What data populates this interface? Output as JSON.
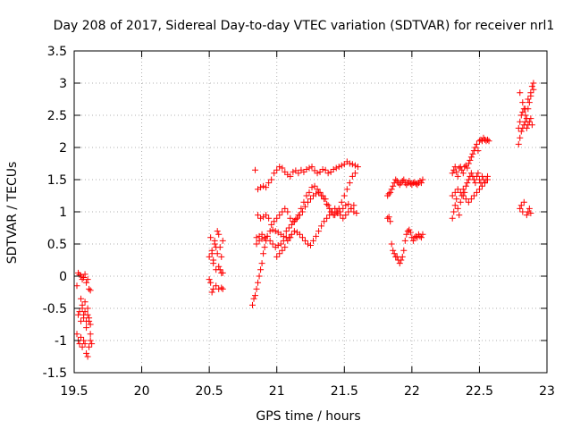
{
  "chart_data": {
    "type": "scatter",
    "title": "Day 208 of 2017, Sidereal Day-to-day VTEC variation (SDTVAR) for receiver nrl1",
    "xlabel": "GPS time / hours",
    "ylabel": "SDTVAR / TECUs",
    "xlim": [
      19.5,
      23
    ],
    "ylim": [
      -1.5,
      3.5
    ],
    "xticks": [
      19.5,
      20,
      20.5,
      21,
      21.5,
      22,
      22.5,
      23
    ],
    "yticks": [
      -1.5,
      -1,
      -0.5,
      0,
      0.5,
      1,
      1.5,
      2,
      2.5,
      3,
      3.5
    ],
    "grid": true,
    "marker": "+",
    "series": [
      {
        "name": "SDTVAR",
        "color": "#ff0000",
        "x": [
          19.52,
          19.53,
          19.54,
          19.55,
          19.56,
          19.57,
          19.58,
          19.59,
          19.6,
          19.61,
          19.62,
          19.53,
          19.54,
          19.55,
          19.56,
          19.57,
          19.58,
          19.59,
          19.6,
          19.61,
          19.62,
          19.52,
          19.53,
          19.54,
          19.55,
          19.56,
          19.57,
          19.58,
          19.59,
          19.6,
          19.61,
          19.62,
          19.55,
          19.56,
          19.57,
          19.58,
          19.59,
          19.6,
          19.61,
          19.62,
          19.63,
          20.5,
          20.51,
          20.52,
          20.53,
          20.54,
          20.55,
          20.56,
          20.57,
          20.58,
          20.59,
          20.6,
          20.52,
          20.53,
          20.54,
          20.55,
          20.56,
          20.57,
          20.58,
          20.59,
          20.6,
          20.5,
          20.51,
          20.52,
          20.53,
          20.55,
          20.57,
          20.59,
          20.6,
          20.82,
          20.83,
          20.84,
          20.85,
          20.86,
          20.87,
          20.88,
          20.89,
          20.9,
          20.91,
          20.92,
          20.84,
          20.86,
          20.88,
          20.9,
          20.92,
          20.94,
          20.96,
          20.98,
          21.0,
          21.02,
          21.04,
          21.06,
          21.08,
          21.1,
          21.12,
          21.14,
          21.16,
          21.18,
          21.2,
          21.22,
          21.24,
          21.26,
          21.28,
          21.3,
          21.32,
          21.34,
          21.36,
          21.38,
          21.4,
          21.42,
          21.44,
          21.46,
          21.48,
          21.5,
          21.52,
          21.54,
          21.56,
          21.58,
          21.6,
          20.86,
          20.88,
          20.9,
          20.92,
          20.94,
          20.96,
          20.98,
          21.0,
          21.02,
          21.04,
          21.06,
          21.08,
          21.1,
          21.12,
          21.14,
          21.16,
          21.18,
          21.2,
          21.22,
          21.24,
          21.26,
          21.28,
          21.3,
          21.32,
          21.34,
          21.36,
          21.38,
          21.4,
          21.42,
          21.44,
          21.46,
          21.48,
          21.5,
          21.52,
          21.54,
          21.56,
          21.58,
          20.85,
          20.87,
          20.89,
          20.91,
          20.93,
          20.95,
          20.97,
          20.99,
          21.01,
          21.03,
          21.05,
          21.07,
          21.09,
          21.11,
          21.13,
          21.15,
          21.17,
          21.19,
          21.21,
          21.23,
          21.25,
          21.27,
          21.29,
          21.31,
          21.33,
          21.35,
          21.37,
          21.39,
          21.41,
          21.43,
          21.45,
          21.47,
          21.49,
          21.51,
          21.53,
          21.55,
          21.57,
          21.59,
          20.85,
          20.87,
          20.89,
          20.91,
          20.93,
          20.95,
          20.97,
          20.99,
          21.01,
          21.03,
          21.05,
          21.07,
          21.09,
          21.11,
          21.13,
          21.15,
          21.17,
          21.19,
          21.21,
          21.23,
          21.25,
          21.27,
          21.29,
          21.31,
          21.33,
          21.35,
          21.37,
          21.39,
          21.41,
          21.43,
          21.45,
          21.47,
          21.49,
          21.51,
          21.53,
          21.55,
          21.57,
          21.0,
          21.02,
          21.04,
          21.06,
          21.08,
          21.1,
          21.82,
          21.83,
          21.84,
          21.85,
          21.86,
          21.87,
          21.88,
          21.89,
          21.9,
          21.91,
          21.92,
          21.93,
          21.94,
          21.95,
          21.96,
          21.97,
          21.98,
          21.99,
          22.0,
          22.01,
          22.02,
          22.03,
          22.04,
          22.05,
          22.06,
          22.07,
          22.08,
          21.82,
          21.83,
          21.84,
          21.85,
          21.86,
          21.87,
          21.88,
          21.89,
          21.9,
          21.91,
          21.92,
          21.93,
          21.94,
          21.95,
          21.96,
          21.97,
          21.98,
          21.99,
          22.0,
          22.01,
          22.02,
          22.03,
          22.04,
          22.05,
          22.06,
          22.07,
          22.08,
          22.3,
          22.31,
          22.32,
          22.33,
          22.34,
          22.35,
          22.36,
          22.37,
          22.38,
          22.39,
          22.4,
          22.41,
          22.42,
          22.43,
          22.44,
          22.45,
          22.46,
          22.47,
          22.48,
          22.49,
          22.5,
          22.51,
          22.52,
          22.53,
          22.54,
          22.55,
          22.56,
          22.57,
          22.3,
          22.31,
          22.32,
          22.33,
          22.34,
          22.35,
          22.36,
          22.37,
          22.38,
          22.39,
          22.4,
          22.41,
          22.42,
          22.43,
          22.44,
          22.45,
          22.46,
          22.47,
          22.48,
          22.49,
          22.5,
          22.51,
          22.52,
          22.53,
          22.54,
          22.55,
          22.56,
          22.3,
          22.32,
          22.34,
          22.36,
          22.38,
          22.4,
          22.42,
          22.44,
          22.46,
          22.48,
          22.5,
          22.52,
          22.54,
          22.56,
          22.79,
          22.8,
          22.81,
          22.82,
          22.83,
          22.84,
          22.85,
          22.86,
          22.87,
          22.88,
          22.89,
          22.9,
          22.79,
          22.8,
          22.81,
          22.82,
          22.83,
          22.84,
          22.85,
          22.86,
          22.87,
          22.88,
          22.89,
          22.8,
          22.82,
          22.84,
          22.86,
          22.88,
          22.9,
          22.8,
          22.81,
          22.82,
          22.83,
          22.85,
          22.86,
          22.87,
          22.88
        ],
        "y": [
          -0.15,
          0.05,
          0.02,
          0.0,
          -0.05,
          -0.02,
          0.03,
          -0.1,
          -0.05,
          -0.2,
          -0.22,
          -0.6,
          -0.55,
          -0.7,
          -0.5,
          -0.65,
          -0.4,
          -0.8,
          -0.6,
          -0.7,
          -0.75,
          -0.9,
          -1.0,
          -1.05,
          -0.95,
          -1.1,
          -1.0,
          -1.05,
          -1.2,
          -1.25,
          -1.1,
          -1.0,
          -0.35,
          -0.45,
          -0.6,
          -0.55,
          -0.7,
          -0.5,
          -0.65,
          -0.9,
          -1.05,
          0.3,
          0.6,
          0.4,
          0.2,
          0.5,
          0.1,
          0.7,
          0.65,
          0.45,
          0.3,
          0.55,
          0.35,
          0.25,
          0.55,
          0.45,
          0.35,
          0.15,
          0.1,
          0.05,
          0.05,
          -0.05,
          -0.1,
          -0.25,
          -0.2,
          -0.15,
          -0.2,
          -0.18,
          -0.2,
          -0.45,
          -0.35,
          -0.3,
          -0.2,
          -0.1,
          0.0,
          0.1,
          0.2,
          0.35,
          0.45,
          0.55,
          1.65,
          1.35,
          1.38,
          1.4,
          1.38,
          1.45,
          1.5,
          1.6,
          1.65,
          1.7,
          1.68,
          1.62,
          1.58,
          1.55,
          1.62,
          1.64,
          1.6,
          1.65,
          1.62,
          1.66,
          1.68,
          1.7,
          1.64,
          1.6,
          1.62,
          1.66,
          1.65,
          1.6,
          1.62,
          1.66,
          1.68,
          1.7,
          1.72,
          1.74,
          1.78,
          1.75,
          1.74,
          1.72,
          1.7,
          0.95,
          0.9,
          0.92,
          0.95,
          0.9,
          0.8,
          0.85,
          0.9,
          0.95,
          1.0,
          1.05,
          1.0,
          0.9,
          0.85,
          0.88,
          0.95,
          1.05,
          1.15,
          1.25,
          1.3,
          1.38,
          1.4,
          1.35,
          1.3,
          1.25,
          1.2,
          1.1,
          1.0,
          0.95,
          1.0,
          1.05,
          1.15,
          1.25,
          1.35,
          1.45,
          1.55,
          1.6,
          0.6,
          0.62,
          0.65,
          0.6,
          0.62,
          0.7,
          0.72,
          0.7,
          0.68,
          0.65,
          0.62,
          0.7,
          0.75,
          0.8,
          0.85,
          0.9,
          0.95,
          1.0,
          1.08,
          1.15,
          1.2,
          1.25,
          1.28,
          1.3,
          1.25,
          1.2,
          1.12,
          1.05,
          1.0,
          0.95,
          0.98,
          1.0,
          1.05,
          1.1,
          1.12,
          1.05,
          1.0,
          0.98,
          0.5,
          0.55,
          0.58,
          0.6,
          0.62,
          0.55,
          0.5,
          0.45,
          0.48,
          0.5,
          0.55,
          0.6,
          0.6,
          0.65,
          0.7,
          0.68,
          0.65,
          0.6,
          0.55,
          0.5,
          0.48,
          0.55,
          0.62,
          0.7,
          0.78,
          0.85,
          0.9,
          0.95,
          1.0,
          1.05,
          1.0,
          0.95,
          0.9,
          0.95,
          1.0,
          1.05,
          1.1,
          0.3,
          0.35,
          0.4,
          0.45,
          0.55,
          0.6,
          1.25,
          1.28,
          1.3,
          1.35,
          1.4,
          1.45,
          1.5,
          1.48,
          1.45,
          1.42,
          1.45,
          1.48,
          1.5,
          1.45,
          1.42,
          1.45,
          1.48,
          1.44,
          1.42,
          1.45,
          1.46,
          1.44,
          1.42,
          1.45,
          1.48,
          1.45,
          1.5,
          0.9,
          0.92,
          0.85,
          0.5,
          0.4,
          0.35,
          0.3,
          0.3,
          0.25,
          0.2,
          0.25,
          0.3,
          0.4,
          0.55,
          0.65,
          0.7,
          0.72,
          0.68,
          0.6,
          0.55,
          0.6,
          0.62,
          0.6,
          0.65,
          0.62,
          0.6,
          0.65,
          1.6,
          1.65,
          1.7,
          1.62,
          1.55,
          1.68,
          1.7,
          1.65,
          1.6,
          1.7,
          1.72,
          1.68,
          1.75,
          1.8,
          1.85,
          1.9,
          1.95,
          2.0,
          2.05,
          1.95,
          2.1,
          2.12,
          2.1,
          2.15,
          2.12,
          2.1,
          2.12,
          2.1,
          0.9,
          1.0,
          1.1,
          1.2,
          1.05,
          0.95,
          1.15,
          1.25,
          1.35,
          1.3,
          1.4,
          1.45,
          1.5,
          1.55,
          1.6,
          1.55,
          1.5,
          1.45,
          1.55,
          1.6,
          1.5,
          1.45,
          1.55,
          1.5,
          1.45,
          1.5,
          1.55,
          1.25,
          1.3,
          1.35,
          1.3,
          1.25,
          1.2,
          1.15,
          1.2,
          1.25,
          1.3,
          1.35,
          1.4,
          1.45,
          1.5,
          2.3,
          2.4,
          2.5,
          2.55,
          2.6,
          2.5,
          2.45,
          2.6,
          2.7,
          2.85,
          2.95,
          3.0,
          2.05,
          2.15,
          2.25,
          2.3,
          2.35,
          2.4,
          2.3,
          2.35,
          2.4,
          2.45,
          2.35,
          2.85,
          2.7,
          2.6,
          2.75,
          2.8,
          2.9,
          1.05,
          1.1,
          1.0,
          1.15,
          0.95,
          1.0,
          1.05,
          0.98
        ]
      }
    ]
  }
}
